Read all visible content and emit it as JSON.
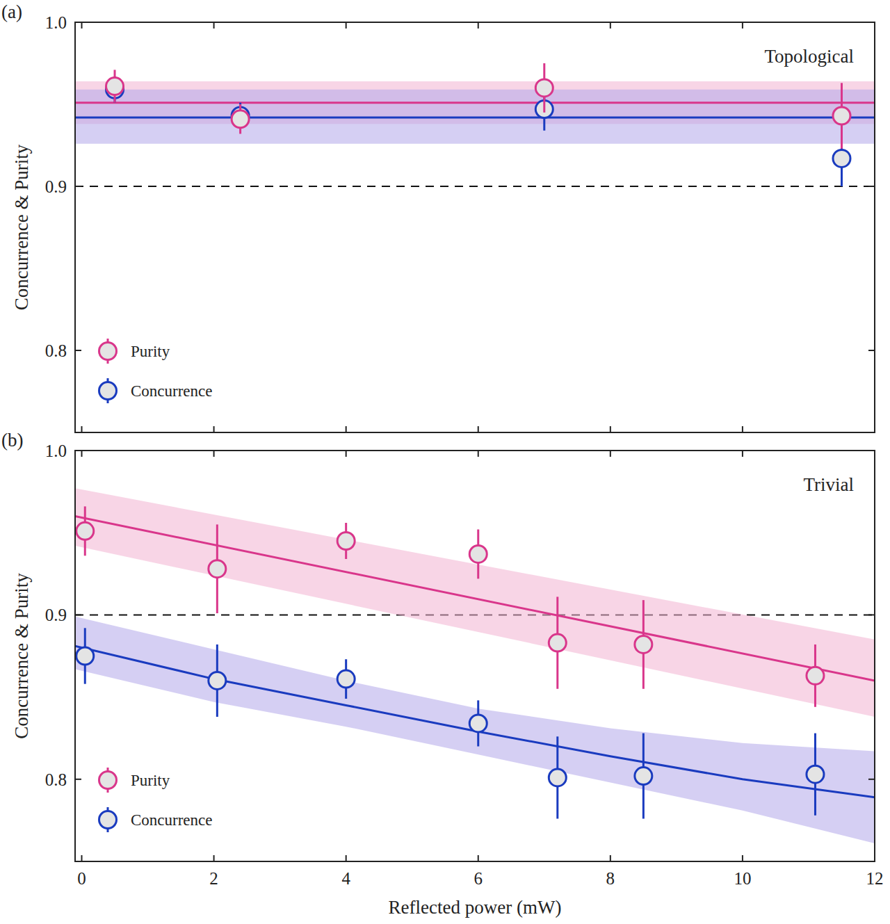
{
  "chart_data": [
    {
      "type": "scatter",
      "panel_label": "(a)",
      "annotation": "Topological",
      "y_label": "Concurrence & Purity",
      "xlim": [
        -0.1,
        12
      ],
      "ylim": [
        0.75,
        1.0
      ],
      "xticks": [
        0,
        2,
        4,
        6,
        8,
        10,
        12
      ],
      "yticks": [
        0.8,
        0.9,
        {
          "value": 1.0,
          "label": "1.0"
        }
      ],
      "reference_line": 0.9,
      "legend": "lower left",
      "tick_labels": "y",
      "series": [
        {
          "name": "Purity",
          "color": "#d9368b",
          "marker": "circle",
          "x": [
            0.5,
            2.4,
            7.0,
            11.5
          ],
          "values": [
            0.961,
            0.941,
            0.96,
            0.943
          ],
          "errors": [
            0.01,
            0.009,
            0.015,
            0.02
          ],
          "fit": {
            "x": [
              -0.1,
              12
            ],
            "values": [
              0.951,
              0.951
            ],
            "lower": [
              0.938,
              0.938
            ],
            "upper": [
              0.964,
              0.964
            ]
          }
        },
        {
          "name": "Concurrence",
          "color": "#1a3bbf",
          "marker": "circle",
          "x": [
            0.5,
            2.4,
            7.0,
            11.5
          ],
          "values": [
            0.959,
            0.943,
            0.947,
            0.917
          ],
          "errors": [
            0.008,
            0.008,
            0.013,
            0.017
          ],
          "fit": {
            "x": [
              -0.1,
              12
            ],
            "values": [
              0.942,
              0.942
            ],
            "lower": [
              0.926,
              0.926
            ],
            "upper": [
              0.959,
              0.959
            ]
          }
        }
      ]
    },
    {
      "type": "scatter",
      "panel_label": "(b)",
      "annotation": "Trivial",
      "x_label": "Reflected power (mW)",
      "y_label": "Concurrence & Purity",
      "xlim": [
        -0.1,
        12
      ],
      "ylim": [
        0.75,
        1.0
      ],
      "xticks": [
        0,
        2,
        4,
        6,
        8,
        10,
        12
      ],
      "yticks": [
        0.8,
        0.9,
        {
          "value": 1.0,
          "label": "1.0"
        }
      ],
      "reference_line": 0.9,
      "legend": "lower left",
      "series": [
        {
          "name": "Purity",
          "color": "#d9368b",
          "marker": "circle",
          "x": [
            0.05,
            2.05,
            4.0,
            6.0,
            7.2,
            8.5,
            11.1
          ],
          "values": [
            0.951,
            0.928,
            0.945,
            0.937,
            0.883,
            0.882,
            0.863
          ],
          "errors": [
            0.015,
            0.027,
            0.011,
            0.015,
            0.028,
            0.027,
            0.019
          ],
          "fit": {
            "x": [
              -0.1,
              12
            ],
            "values": [
              0.96,
              0.86
            ],
            "lower": [
              0.942,
              0.838
            ],
            "upper": [
              0.977,
              0.885
            ]
          }
        },
        {
          "name": "Concurrence",
          "color": "#1a3bbf",
          "marker": "circle",
          "x": [
            0.05,
            2.05,
            4.0,
            6.0,
            7.2,
            8.5,
            11.1
          ],
          "values": [
            0.875,
            0.86,
            0.861,
            0.834,
            0.801,
            0.802,
            0.803
          ],
          "errors": [
            0.017,
            0.022,
            0.012,
            0.014,
            0.025,
            0.026,
            0.025
          ],
          "fit": {
            "x": [
              -0.1,
              2,
              4,
              6,
              8,
              10,
              12
            ],
            "values": [
              0.881,
              0.861,
              0.845,
              0.829,
              0.814,
              0.8,
              0.789
            ],
            "lower": [
              0.867,
              0.847,
              0.832,
              0.815,
              0.798,
              0.781,
              0.761
            ],
            "upper": [
              0.899,
              0.879,
              0.86,
              0.843,
              0.831,
              0.822,
              0.817
            ]
          }
        }
      ]
    }
  ]
}
